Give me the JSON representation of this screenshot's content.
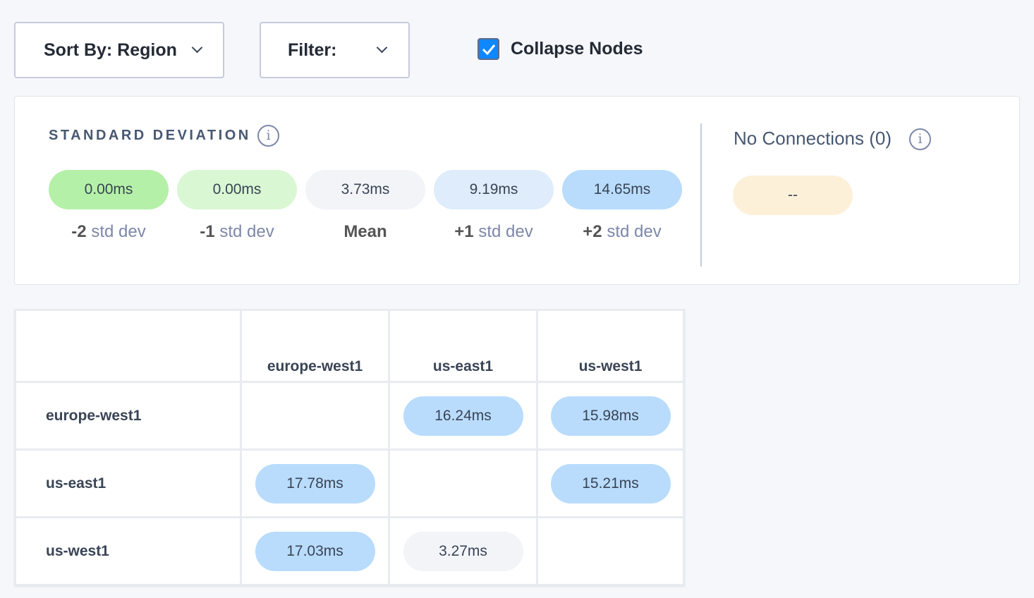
{
  "toolbar": {
    "sort_label": "Sort By: Region",
    "filter_label": "Filter:",
    "collapse_label": "Collapse Nodes",
    "collapse_checked": true
  },
  "stddev": {
    "title": "STANDARD DEVIATION",
    "items": [
      {
        "value": "0.00ms",
        "prefix": "-2",
        "suffix": "std dev",
        "color": "#b5f0a8"
      },
      {
        "value": "0.00ms",
        "prefix": "-1",
        "suffix": "std dev",
        "color": "#d9f7d3"
      },
      {
        "value": "3.73ms",
        "prefix": "Mean",
        "suffix": "",
        "color": "#f2f4f8"
      },
      {
        "value": "9.19ms",
        "prefix": "+1",
        "suffix": "std dev",
        "color": "#deecfb"
      },
      {
        "value": "14.65ms",
        "prefix": "+2",
        "suffix": "std dev",
        "color": "#b9dcfd"
      }
    ]
  },
  "no_connections": {
    "label": "No Connections (0)",
    "value": "--",
    "color": "#fdf0d9"
  },
  "matrix": {
    "columns": [
      "europe-west1",
      "us-east1",
      "us-west1"
    ],
    "rows": [
      {
        "label": "europe-west1",
        "cells": [
          "",
          "16.24ms",
          "15.98ms"
        ]
      },
      {
        "label": "us-east1",
        "cells": [
          "17.78ms",
          "",
          "15.21ms"
        ]
      },
      {
        "label": "us-west1",
        "cells": [
          "17.03ms",
          "3.27ms",
          ""
        ]
      }
    ]
  }
}
